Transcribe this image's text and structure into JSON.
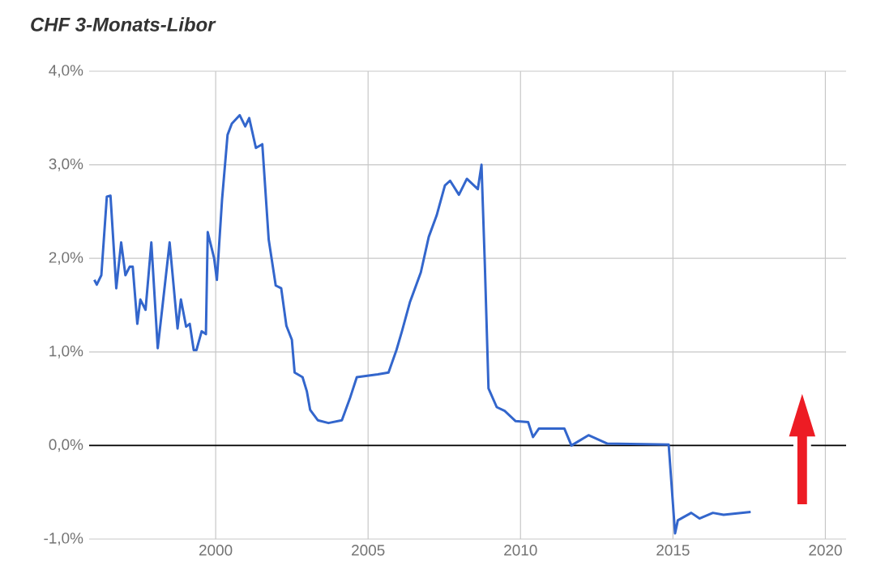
{
  "chart_data": {
    "type": "line",
    "title": "CHF 3-Monats-Libor",
    "x": [
      1996.02,
      1996.1,
      1996.25,
      1996.43,
      1996.55,
      1996.74,
      1996.9,
      1997.04,
      1997.18,
      1997.28,
      1997.43,
      1997.53,
      1997.7,
      1997.89,
      1998.1,
      1998.27,
      1998.49,
      1998.75,
      1998.86,
      1999.03,
      1999.15,
      1999.28,
      1999.37,
      1999.54,
      1999.68,
      1999.74,
      1999.95,
      2000.04,
      2000.21,
      2000.39,
      2000.53,
      2000.79,
      2000.97,
      2001.1,
      2001.32,
      2001.53,
      2001.74,
      2001.97,
      2002.15,
      2002.32,
      2002.5,
      2002.59,
      2002.85,
      2002.99,
      2003.1,
      2003.35,
      2003.7,
      2004.14,
      2004.4,
      2004.63,
      2005.32,
      2005.67,
      2005.93,
      2006.11,
      2006.37,
      2006.73,
      2006.99,
      2007.25,
      2007.52,
      2007.69,
      2007.98,
      2008.24,
      2008.6,
      2008.72,
      2008.83,
      2008.95,
      2009.22,
      2009.48,
      2009.84,
      2010.25,
      2010.41,
      2010.6,
      2011.44,
      2011.67,
      2012.23,
      2012.85,
      2014.86,
      2015.07,
      2015.16,
      2015.6,
      2015.87,
      2016.31,
      2016.66,
      2017.55
    ],
    "series": [
      {
        "color": "#3366cc",
        "values": [
          1.77,
          1.72,
          1.82,
          2.66,
          2.67,
          1.68,
          2.17,
          1.82,
          1.91,
          1.91,
          1.3,
          1.56,
          1.45,
          2.17,
          1.04,
          1.53,
          2.17,
          1.25,
          1.56,
          1.27,
          1.3,
          1.02,
          1.02,
          1.22,
          1.19,
          2.28,
          2.0,
          1.77,
          2.63,
          3.32,
          3.44,
          3.53,
          3.41,
          3.5,
          3.18,
          3.22,
          2.2,
          1.71,
          1.68,
          1.28,
          1.13,
          0.78,
          0.73,
          0.58,
          0.38,
          0.27,
          0.24,
          0.27,
          0.5,
          0.73,
          0.76,
          0.78,
          1.02,
          1.22,
          1.53,
          1.85,
          2.23,
          2.46,
          2.78,
          2.83,
          2.68,
          2.85,
          2.74,
          3.0,
          1.93,
          0.61,
          0.41,
          0.37,
          0.26,
          0.25,
          0.09,
          0.18,
          0.18,
          0.0,
          0.11,
          0.02,
          0.01,
          -0.94,
          -0.8,
          -0.72,
          -0.78,
          -0.72,
          -0.74,
          -0.71
        ]
      }
    ],
    "xlim": [
      1995.85,
      2020.68
    ],
    "xticks": [
      2000,
      2005,
      2010,
      2015,
      2020
    ],
    "ylim": [
      -1,
      4
    ],
    "yticks": [
      {
        "value": -1,
        "label": "-1,0%"
      },
      {
        "value": 0,
        "label": "0,0%"
      },
      {
        "value": 1,
        "label": "1,0%"
      },
      {
        "value": 2,
        "label": "2,0%"
      },
      {
        "value": 3,
        "label": "3,0%"
      },
      {
        "value": 4,
        "label": "4,0%"
      }
    ],
    "grid": true,
    "ref_lines": [
      {
        "axis": "y",
        "value": 0,
        "color": "#000000"
      }
    ]
  }
}
